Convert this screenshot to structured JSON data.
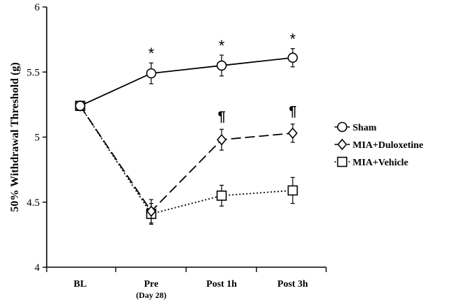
{
  "chart_data": {
    "type": "line",
    "ylabel": "50% Withdrawal Threshold (g)",
    "xlabel": "",
    "categories": [
      "BL",
      "Pre",
      "Post 1h",
      "Post 3h"
    ],
    "category_sublabels": [
      "",
      "(Day 28)",
      "",
      ""
    ],
    "ylim": [
      4,
      6
    ],
    "yticks": [
      "4",
      "4.5",
      "5",
      "5.5",
      "6"
    ],
    "ytick_values": [
      4,
      4.5,
      5,
      5.5,
      6
    ],
    "grid": false,
    "legend_position": "right",
    "series": [
      {
        "name": "Sham",
        "marker": "circle",
        "line_style": "solid",
        "values": [
          5.24,
          5.49,
          5.55,
          5.61
        ],
        "errors": [
          0.03,
          0.08,
          0.08,
          0.07
        ]
      },
      {
        "name": "MIA+Duloxetine",
        "marker": "diamond",
        "line_style": "dashed",
        "values": [
          5.24,
          4.43,
          4.98,
          5.03
        ],
        "errors": [
          0.03,
          0.09,
          0.08,
          0.07
        ]
      },
      {
        "name": "MIA+Vehicle",
        "marker": "square",
        "line_style": "dotted",
        "values": [
          5.24,
          4.41,
          4.55,
          4.59
        ],
        "errors": [
          0.03,
          0.08,
          0.08,
          0.1
        ]
      }
    ],
    "annotations": [
      {
        "text": "*",
        "series": "Sham",
        "category": "Pre"
      },
      {
        "text": "*",
        "series": "Sham",
        "category": "Post 1h"
      },
      {
        "text": "*",
        "series": "Sham",
        "category": "Post 3h"
      },
      {
        "text": "¶",
        "series": "MIA+Duloxetine",
        "category": "Post 1h"
      },
      {
        "text": "¶",
        "series": "MIA+Duloxetine",
        "category": "Post 3h"
      }
    ],
    "colors": {
      "line": "#000000",
      "marker_fill": "#ffffff"
    }
  }
}
